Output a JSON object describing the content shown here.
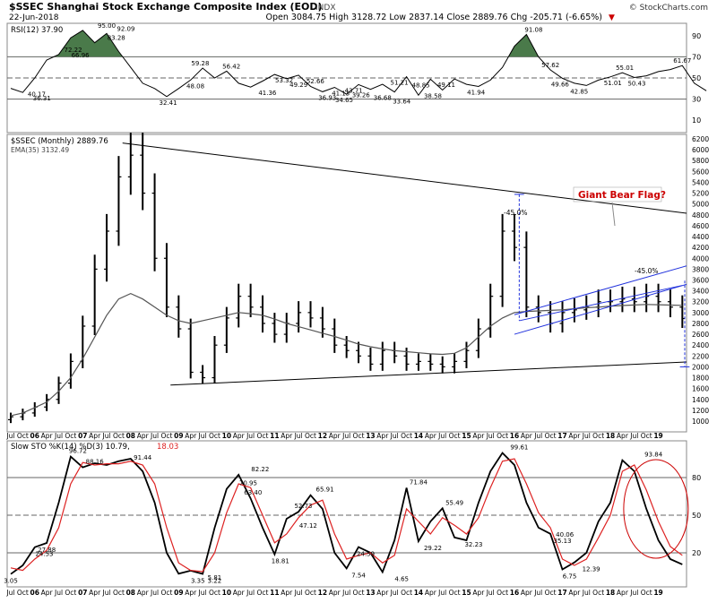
{
  "header": {
    "symbol_title": "$SSEC Shanghai Stock Exchange Composite Index (EOD)",
    "exchange": "INDX",
    "date": "22-Jun-2018",
    "brand": "© StockCharts.com",
    "quote": "Open 3084.75  High 3128.72  Low 2837.14  Close 2889.76  Chg -205.71 (-6.65%)",
    "quote_arrow": "▼"
  },
  "colors": {
    "price_bar": "#000000",
    "ema": "#555555",
    "trendline": "#000000",
    "flag_channel": "#2233dd",
    "measure_line": "#2233dd",
    "annotation_red": "#cc0000",
    "rsi_fill": "#4a7a4a",
    "sto_k": "#000000",
    "sto_d": "#dd2222"
  },
  "rsi_panel": {
    "legend": "RSI(12) 37.90",
    "y_ticks": [
      "90",
      "70",
      "50",
      "30",
      "10"
    ],
    "labels": [
      {
        "t": 2006.04,
        "v": 40.17,
        "text": "40.17"
      },
      {
        "t": 2006.15,
        "v": 36.31,
        "text": "36.31"
      },
      {
        "t": 2006.8,
        "v": 72.22,
        "text": "72.22"
      },
      {
        "t": 2006.95,
        "v": 66.96,
        "text": "66.96"
      },
      {
        "t": 2007.5,
        "v": 95.0,
        "text": "95.00"
      },
      {
        "t": 2007.7,
        "v": 83.28,
        "text": "83.28"
      },
      {
        "t": 2007.9,
        "v": 92.09,
        "text": "92.09"
      },
      {
        "t": 2008.78,
        "v": 32.41,
        "text": "32.41"
      },
      {
        "t": 2009.35,
        "v": 48.08,
        "text": "48.08"
      },
      {
        "t": 2009.45,
        "v": 59.28,
        "text": "59.28"
      },
      {
        "t": 2010.1,
        "v": 56.42,
        "text": "56.42"
      },
      {
        "t": 2010.85,
        "v": 41.36,
        "text": "41.36"
      },
      {
        "t": 2011.2,
        "v": 53.32,
        "text": "53.32"
      },
      {
        "t": 2011.5,
        "v": 49.29,
        "text": "49.29"
      },
      {
        "t": 2011.85,
        "v": 52.66,
        "text": "52.66"
      },
      {
        "t": 2012.1,
        "v": 36.93,
        "text": "36.93"
      },
      {
        "t": 2012.38,
        "v": 41.13,
        "text": "41.13"
      },
      {
        "t": 2012.45,
        "v": 34.65,
        "text": "34.65"
      },
      {
        "t": 2012.65,
        "v": 43.71,
        "text": "43.71"
      },
      {
        "t": 2012.8,
        "v": 39.26,
        "text": "39.26"
      },
      {
        "t": 2013.25,
        "v": 36.68,
        "text": "36.68"
      },
      {
        "t": 2013.6,
        "v": 51.21,
        "text": "51.21"
      },
      {
        "t": 2013.65,
        "v": 33.64,
        "text": "33.64"
      },
      {
        "t": 2014.05,
        "v": 48.85,
        "text": "48.85"
      },
      {
        "t": 2014.3,
        "v": 38.58,
        "text": "38.58"
      },
      {
        "t": 2014.58,
        "v": 49.11,
        "text": "49.11"
      },
      {
        "t": 2015.2,
        "v": 41.94,
        "text": "41.94"
      },
      {
        "t": 2016.4,
        "v": 91.08,
        "text": "91.08"
      },
      {
        "t": 2016.75,
        "v": 57.62,
        "text": "57.62"
      },
      {
        "t": 2016.95,
        "v": 49.66,
        "text": "49.66"
      },
      {
        "t": 2017.35,
        "v": 42.85,
        "text": "42.85"
      },
      {
        "t": 2018.05,
        "v": 51.01,
        "text": "51.01"
      },
      {
        "t": 2018.3,
        "v": 55.01,
        "text": "55.01"
      },
      {
        "t": 2018.55,
        "v": 50.43,
        "text": "50.43"
      },
      {
        "t": 2019.5,
        "v": 61.67,
        "text": "61.67"
      }
    ]
  },
  "price_panel": {
    "legend_symbol": "$SSEC (Monthly) 2889.76",
    "legend_ema": "EMA(35) 3132.49",
    "y_ticks": [
      "6200",
      "6000",
      "5800",
      "5600",
      "5400",
      "5200",
      "5000",
      "4800",
      "4600",
      "4400",
      "4200",
      "4000",
      "3800",
      "3600",
      "3400",
      "3200",
      "3000",
      "2800",
      "2600",
      "2400",
      "2200",
      "2000",
      "1800",
      "1600",
      "1400",
      "1200",
      "1000"
    ],
    "annotation_title": "Giant Bear Flag?",
    "pct_label_1": "-45.0%",
    "pct_label_2": "-45.0%"
  },
  "sto_panel": {
    "legend_k": "Slow STO %K(14) %D(3) 10.79,",
    "legend_d": "18.03",
    "y_ticks": [
      "80",
      "50",
      "20"
    ],
    "labels": [
      {
        "t": 2005.5,
        "v": 3.05,
        "text": "3.05"
      },
      {
        "t": 2006.2,
        "v": 24.53,
        "text": "24.53"
      },
      {
        "t": 2006.25,
        "v": 27.88,
        "text": "27.88"
      },
      {
        "t": 2006.9,
        "v": 96.72,
        "text": "96.72"
      },
      {
        "t": 2007.25,
        "v": 88.16,
        "text": "88.16"
      },
      {
        "t": 2008.25,
        "v": 91.44,
        "text": "91.44"
      },
      {
        "t": 2009.4,
        "v": 3.35,
        "text": "3.35"
      },
      {
        "t": 2009.75,
        "v": 5.81,
        "text": "5.81"
      },
      {
        "t": 2009.75,
        "v": 3.22,
        "text": "3.22"
      },
      {
        "t": 2010.45,
        "v": 70.95,
        "text": "70.95"
      },
      {
        "t": 2010.7,
        "v": 82.22,
        "text": "82.22"
      },
      {
        "t": 2010.55,
        "v": 63.4,
        "text": "63.40"
      },
      {
        "t": 2011.12,
        "v": 18.81,
        "text": "18.81"
      },
      {
        "t": 2011.6,
        "v": 52.73,
        "text": "52.73"
      },
      {
        "t": 2011.7,
        "v": 47.12,
        "text": "47.12"
      },
      {
        "t": 2012.05,
        "v": 65.91,
        "text": "65.91"
      },
      {
        "t": 2012.75,
        "v": 7.54,
        "text": "7.54"
      },
      {
        "t": 2012.9,
        "v": 24.59,
        "text": "24.59"
      },
      {
        "t": 2013.65,
        "v": 4.65,
        "text": "4.65"
      },
      {
        "t": 2014.0,
        "v": 71.84,
        "text": "71.84"
      },
      {
        "t": 2014.3,
        "v": 29.22,
        "text": "29.22"
      },
      {
        "t": 2014.75,
        "v": 55.49,
        "text": "55.49"
      },
      {
        "t": 2015.15,
        "v": 32.23,
        "text": "32.23"
      },
      {
        "t": 2016.1,
        "v": 99.61,
        "text": "99.61"
      },
      {
        "t": 2017.05,
        "v": 40.06,
        "text": "40.06"
      },
      {
        "t": 2017.0,
        "v": 35.13,
        "text": "35.13"
      },
      {
        "t": 2017.15,
        "v": 6.75,
        "text": "6.75"
      },
      {
        "t": 2017.6,
        "v": 12.39,
        "text": "12.39"
      },
      {
        "t": 2018.9,
        "v": 93.84,
        "text": "93.84"
      }
    ]
  },
  "x_axis_labels": [
    "Jul",
    "Oct",
    "06",
    "Apr",
    "Jul",
    "Oct",
    "07",
    "Apr",
    "Jul",
    "Oct",
    "08",
    "Apr",
    "Jul",
    "Oct",
    "09",
    "Apr",
    "Jul",
    "Oct",
    "10",
    "Apr",
    "Jul",
    "Oct",
    "11",
    "Apr",
    "Jul",
    "Oct",
    "12",
    "Apr",
    "Jul",
    "Oct",
    "13",
    "Apr",
    "Jul",
    "Oct",
    "14",
    "Apr",
    "Jul",
    "Oct",
    "15",
    "Apr",
    "Jul",
    "Oct",
    "16",
    "Apr",
    "Jul",
    "Oct",
    "17",
    "Apr",
    "Jul",
    "Oct",
    "18",
    "Apr",
    "Jul",
    "Oct",
    "19"
  ],
  "chart_data": [
    {
      "type": "line",
      "title": "RSI(12) 37.90",
      "ylim": [
        0,
        100
      ],
      "reference_lines": [
        70,
        50,
        30
      ],
      "x": [
        2005.5,
        2005.75,
        2006.0,
        2006.25,
        2006.5,
        2006.75,
        2007.0,
        2007.25,
        2007.5,
        2007.75,
        2008.0,
        2008.25,
        2008.5,
        2008.75,
        2009.0,
        2009.25,
        2009.5,
        2009.75,
        2010.0,
        2010.25,
        2010.5,
        2010.75,
        2011.0,
        2011.25,
        2011.5,
        2011.75,
        2012.0,
        2012.25,
        2012.5,
        2012.75,
        2013.0,
        2013.25,
        2013.5,
        2013.75,
        2014.0,
        2014.25,
        2014.5,
        2014.75,
        2015.0,
        2015.25,
        2015.5,
        2015.75,
        2016.0,
        2016.25,
        2016.5,
        2016.75,
        2017.0,
        2017.25,
        2017.5,
        2017.75,
        2018.0,
        2018.25,
        2018.5,
        2018.75,
        2019.0,
        2019.25,
        2019.5,
        2019.75,
        2020.0
      ],
      "values": [
        40.17,
        36.31,
        50,
        66.96,
        72.22,
        88,
        95.0,
        83.28,
        92.09,
        75,
        60,
        45,
        40,
        32.41,
        40,
        48.08,
        59.28,
        50,
        56.42,
        45,
        41.36,
        47,
        53.32,
        49.29,
        52.66,
        42,
        36.93,
        41.13,
        34.65,
        43.71,
        39.26,
        44,
        36.68,
        51.21,
        33.64,
        48.85,
        38.58,
        49.11,
        44,
        41.94,
        48,
        60,
        80,
        91.08,
        70,
        57.62,
        49.66,
        45,
        42.85,
        48,
        51.01,
        55.01,
        50.43,
        52,
        56,
        58,
        61.67,
        45,
        37.9
      ]
    },
    {
      "type": "bar",
      "title": "$SSEC (Monthly) 2889.76",
      "ylabel": "",
      "ylim": [
        1000,
        6200
      ],
      "ohlc_note": "monthly OHLC bars (approximate closes)",
      "x": [
        2005.5,
        2005.75,
        2006.0,
        2006.25,
        2006.5,
        2006.75,
        2007.0,
        2007.25,
        2007.5,
        2007.75,
        2008.0,
        2008.25,
        2008.5,
        2008.75,
        2009.0,
        2009.25,
        2009.5,
        2009.75,
        2010.0,
        2010.25,
        2010.5,
        2010.75,
        2011.0,
        2011.25,
        2011.5,
        2011.75,
        2012.0,
        2012.25,
        2012.5,
        2012.75,
        2013.0,
        2013.25,
        2013.5,
        2013.75,
        2014.0,
        2014.25,
        2014.5,
        2014.75,
        2015.0,
        2015.25,
        2015.5,
        2015.75,
        2016.0,
        2016.25,
        2016.5,
        2016.75,
        2017.0,
        2017.25,
        2017.5,
        2017.75,
        2018.0,
        2018.25,
        2018.5,
        2018.75,
        2019.0,
        2019.25,
        2019.5
      ],
      "close": [
        1080,
        1150,
        1260,
        1400,
        1700,
        2100,
        2750,
        3800,
        4500,
        5500,
        5900,
        5200,
        4000,
        3100,
        2700,
        1900,
        1800,
        2400,
        2900,
        3300,
        3100,
        2800,
        2600,
        2800,
        3000,
        2900,
        2700,
        2400,
        2300,
        2200,
        2050,
        2300,
        2200,
        2050,
        2100,
        2050,
        2000,
        2100,
        2300,
        2700,
        3300,
        4500,
        4200,
        3100,
        3000,
        2800,
        3000,
        3050,
        3100,
        3200,
        3200,
        3250,
        3200,
        3300,
        3200,
        3100,
        2890
      ],
      "ema35": [
        1100,
        1150,
        1250,
        1350,
        1550,
        1800,
        2150,
        2550,
        2950,
        3250,
        3350,
        3250,
        3100,
        2950,
        2850,
        2800,
        2850,
        2900,
        2950,
        3000,
        2980,
        2950,
        2880,
        2800,
        2740,
        2680,
        2620,
        2560,
        2490,
        2420,
        2370,
        2330,
        2300,
        2280,
        2260,
        2240,
        2230,
        2250,
        2350,
        2550,
        2750,
        2900,
        3000,
        3020,
        3030,
        3040,
        3050,
        3070,
        3090,
        3100,
        3120,
        3130,
        3140,
        3150,
        3145,
        3138,
        3132.49
      ]
    },
    {
      "type": "line",
      "title": "Slow STO %K(14) %D(3)",
      "ylim": [
        0,
        100
      ],
      "reference_lines": [
        80,
        50,
        20
      ],
      "series": [
        {
          "name": "%K",
          "x": [
            2005.5,
            2005.75,
            2006.0,
            2006.25,
            2006.5,
            2006.75,
            2007.0,
            2007.25,
            2007.5,
            2007.75,
            2008.0,
            2008.25,
            2008.5,
            2008.75,
            2009.0,
            2009.25,
            2009.5,
            2009.75,
            2010.0,
            2010.25,
            2010.5,
            2010.75,
            2011.0,
            2011.25,
            2011.5,
            2011.75,
            2012.0,
            2012.25,
            2012.5,
            2012.75,
            2013.0,
            2013.25,
            2013.5,
            2013.75,
            2014.0,
            2014.25,
            2014.5,
            2014.75,
            2015.0,
            2015.25,
            2015.5,
            2015.75,
            2016.0,
            2016.25,
            2016.5,
            2016.75,
            2017.0,
            2017.25,
            2017.5,
            2017.75,
            2018.0,
            2018.25,
            2018.5,
            2018.75,
            2019.0,
            2019.25,
            2019.5
          ],
          "values": [
            3.05,
            10,
            24.53,
            27.88,
            60,
            96.72,
            88.16,
            91.44,
            90,
            93,
            95,
            85,
            60,
            20,
            3.35,
            5.81,
            3.22,
            40,
            70.95,
            82.22,
            63.4,
            40,
            18.81,
            47.12,
            52.73,
            65.91,
            55,
            20,
            7.54,
            24.59,
            20,
            4.65,
            30,
            71.84,
            29.22,
            45,
            55.49,
            32.23,
            30,
            60,
            85,
            99.61,
            90,
            60,
            40.06,
            35.13,
            6.75,
            12.39,
            20,
            45,
            60,
            93.84,
            85,
            55,
            30,
            15,
            10.79
          ]
        },
        {
          "name": "%D",
          "x": [
            2005.5,
            2005.75,
            2006.0,
            2006.25,
            2006.5,
            2006.75,
            2007.0,
            2007.25,
            2007.5,
            2007.75,
            2008.0,
            2008.25,
            2008.5,
            2008.75,
            2009.0,
            2009.25,
            2009.5,
            2009.75,
            2010.0,
            2010.25,
            2010.5,
            2010.75,
            2011.0,
            2011.25,
            2011.5,
            2011.75,
            2012.0,
            2012.25,
            2012.5,
            2012.75,
            2013.0,
            2013.25,
            2013.5,
            2013.75,
            2014.0,
            2014.25,
            2014.5,
            2014.75,
            2015.0,
            2015.25,
            2015.5,
            2015.75,
            2016.0,
            2016.25,
            2016.5,
            2016.75,
            2017.0,
            2017.25,
            2017.5,
            2017.75,
            2018.0,
            2018.25,
            2018.5,
            2018.75,
            2019.0,
            2019.25,
            2019.5
          ],
          "values": [
            8,
            6,
            15,
            22,
            40,
            75,
            92,
            90,
            91,
            91,
            93,
            90,
            75,
            40,
            12,
            6,
            5,
            20,
            52,
            75,
            72,
            50,
            28,
            35,
            48,
            58,
            62,
            35,
            15,
            18,
            20,
            12,
            18,
            55,
            45,
            35,
            48,
            42,
            35,
            48,
            72,
            93,
            95,
            75,
            52,
            40,
            15,
            10,
            15,
            32,
            50,
            85,
            90,
            70,
            45,
            25,
            18.03
          ]
        }
      ]
    }
  ]
}
